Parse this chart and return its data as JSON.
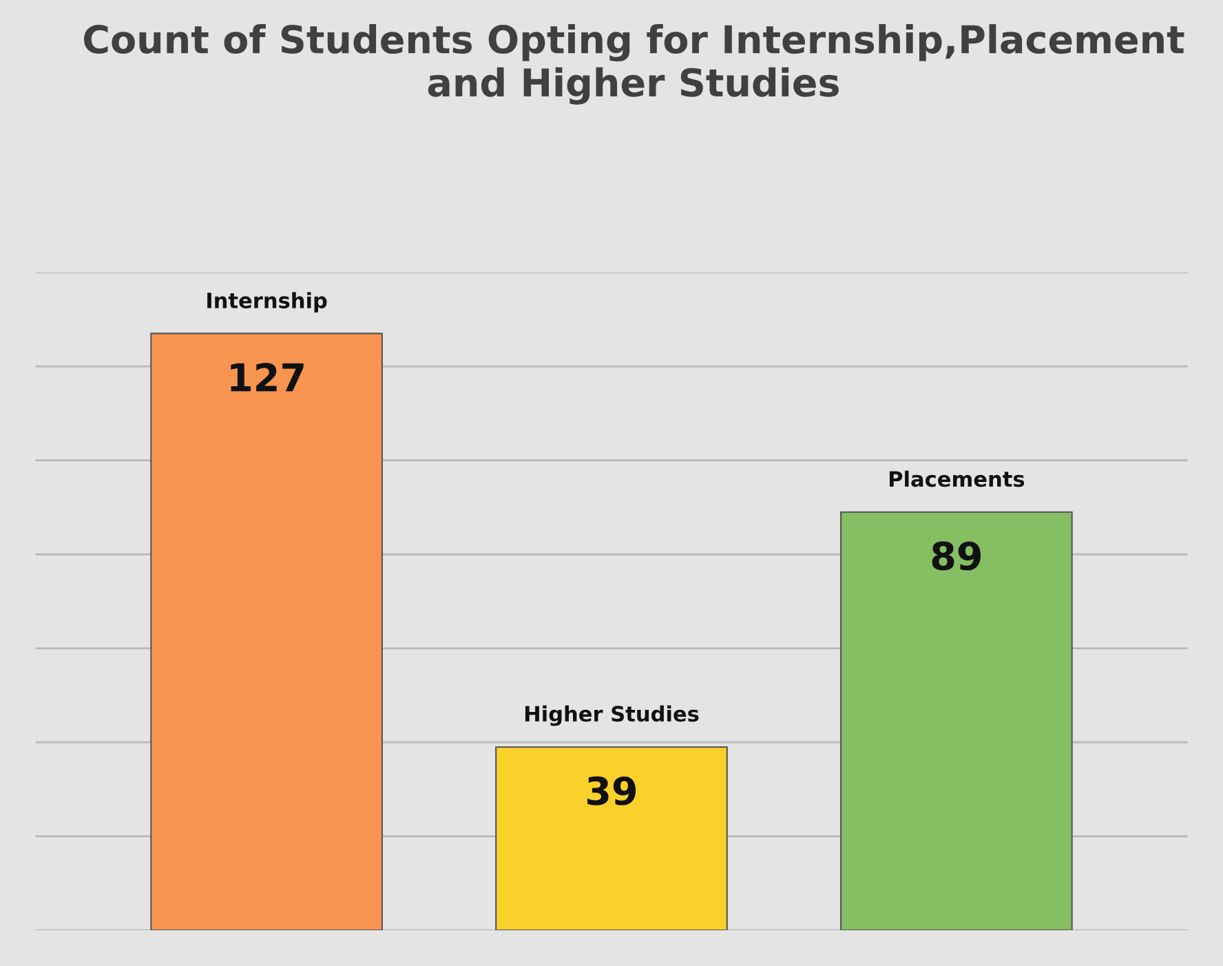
{
  "chart_data": {
    "type": "bar",
    "title": "Count of Students Opting for Internship,Placement and Higher Studies",
    "categories": [
      "Internship",
      "Higher Studies",
      "Placements"
    ],
    "values": [
      127,
      39,
      89
    ],
    "colors": [
      "#f79550",
      "#f9d12a",
      "#86be63"
    ],
    "ylim": [
      0,
      140
    ],
    "yticks": [
      {
        "value": 0,
        "label": null
      },
      {
        "value": 20,
        "label": null
      },
      {
        "value": 40,
        "label": null
      },
      {
        "value": 60,
        "label": null
      },
      {
        "value": 80,
        "label": null
      },
      {
        "value": 100,
        "label": null
      },
      {
        "value": 120,
        "label": null
      },
      {
        "value": 140,
        "label": null
      }
    ],
    "grid": "y",
    "data_labels": true
  }
}
